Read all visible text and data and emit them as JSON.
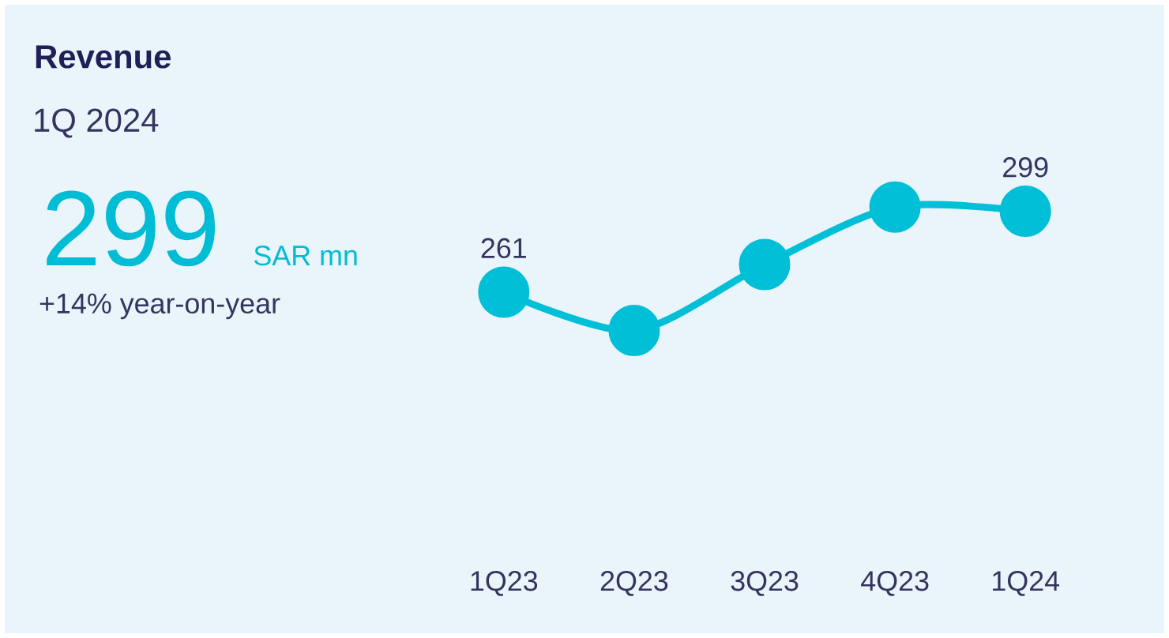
{
  "chart_data": {
    "type": "line",
    "title": "Revenue",
    "subtitle": "1Q 2024",
    "annotations": [
      "299",
      "SAR mn",
      "+14% year-on-year"
    ],
    "categories": [
      "1Q23",
      "2Q23",
      "3Q23",
      "4Q23",
      "1Q24"
    ],
    "series": [
      {
        "color": "#00bfd6",
        "values": [
          261,
          243,
          274,
          301,
          299
        ],
        "value_labels": [
          "261",
          null,
          null,
          null,
          "299"
        ]
      }
    ],
    "marker": "circle",
    "line_style": "solid"
  }
}
